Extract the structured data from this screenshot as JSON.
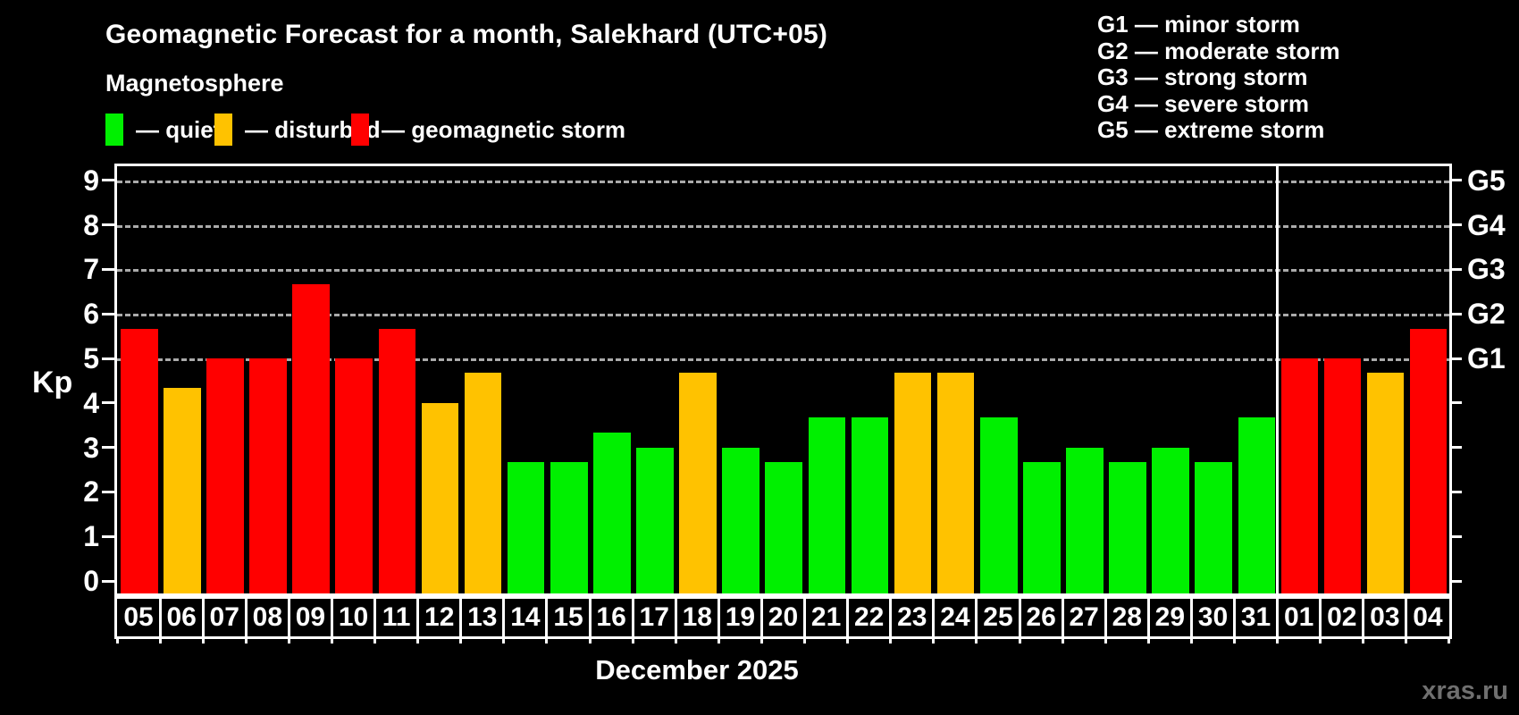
{
  "header": {
    "title": "Geomagnetic Forecast for a month, Salekhard (UTC+05)",
    "subtitle": "Magnetosphere",
    "legend": [
      {
        "key": "quiet",
        "label": "— quiet",
        "color": "#00f000"
      },
      {
        "key": "disturbed",
        "label": "— disturbed",
        "color": "#ffc200"
      },
      {
        "key": "storm",
        "label": "— geomagnetic storm",
        "color": "#ff0000"
      }
    ],
    "g_scale_legend": [
      "G1 — minor storm",
      "G2 — moderate storm",
      "G3 — strong storm",
      "G4 — severe storm",
      "G5 — extreme storm"
    ]
  },
  "chart_data": {
    "type": "bar",
    "title": "Geomagnetic Forecast for a month, Salekhard (UTC+05)",
    "xlabel": "December 2025",
    "ylabel": "Kp",
    "ylim": [
      0,
      9.4
    ],
    "y_ticks": [
      0,
      1,
      2,
      3,
      4,
      5,
      6,
      7,
      8,
      9
    ],
    "grid_levels": [
      5,
      6,
      7,
      8,
      9
    ],
    "grid_style": "dashed",
    "right_axis_labels": [
      {
        "label": "G1",
        "kp": 5
      },
      {
        "label": "G2",
        "kp": 6
      },
      {
        "label": "G3",
        "kp": 7
      },
      {
        "label": "G4",
        "kp": 8
      },
      {
        "label": "G5",
        "kp": 9
      }
    ],
    "categories": [
      "05",
      "06",
      "07",
      "08",
      "09",
      "10",
      "11",
      "12",
      "13",
      "14",
      "15",
      "16",
      "17",
      "18",
      "19",
      "20",
      "21",
      "22",
      "23",
      "24",
      "25",
      "26",
      "27",
      "28",
      "29",
      "30",
      "31",
      "01",
      "02",
      "03",
      "04"
    ],
    "series": [
      {
        "name": "Kp forecast",
        "values": [
          5.67,
          4.33,
          5.0,
          5.0,
          6.67,
          5.0,
          5.67,
          4.0,
          4.67,
          2.67,
          2.67,
          3.33,
          3.0,
          4.67,
          3.0,
          2.67,
          3.67,
          3.67,
          4.67,
          4.67,
          3.67,
          2.67,
          3.0,
          2.67,
          3.0,
          2.67,
          3.67,
          5.0,
          5.0,
          4.67,
          5.67
        ]
      }
    ],
    "point_categories": [
      "storm",
      "disturbed",
      "storm",
      "storm",
      "storm",
      "storm",
      "storm",
      "disturbed",
      "disturbed",
      "quiet",
      "quiet",
      "quiet",
      "quiet",
      "disturbed",
      "quiet",
      "quiet",
      "quiet",
      "quiet",
      "disturbed",
      "disturbed",
      "quiet",
      "quiet",
      "quiet",
      "quiet",
      "quiet",
      "quiet",
      "quiet",
      "storm",
      "storm",
      "disturbed",
      "storm"
    ],
    "colors": {
      "quiet": "#00f000",
      "disturbed": "#ffc200",
      "storm": "#ff0000"
    },
    "month_separator_after_index": 26,
    "legend_position": "top-left"
  },
  "footer": {
    "watermark": "xras.ru"
  }
}
